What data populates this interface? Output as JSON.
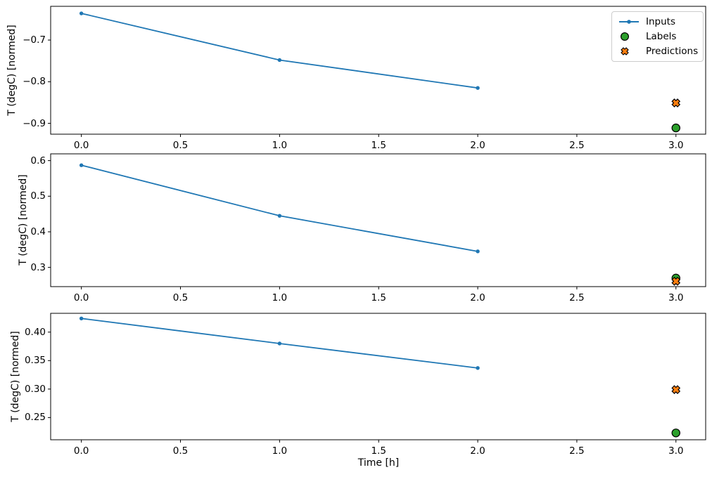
{
  "figure": {
    "background": "#ffffff"
  },
  "xlabel": "Time [h]",
  "legend": {
    "position": "upper right of first subplot",
    "items": [
      {
        "label": "Inputs",
        "marker": "line-dot",
        "color": "#1f77b4",
        "edge_color": "#1f77b4"
      },
      {
        "label": "Labels",
        "marker": "circle",
        "color": "#2ca02c",
        "edge_color": "#000000"
      },
      {
        "label": "Predictions",
        "marker": "X",
        "color": "#ff7f0e",
        "edge_color": "#000000"
      }
    ]
  },
  "chart_data": [
    {
      "type": "line",
      "title": "",
      "ylabel": "T (degC) [normed]",
      "xlabel": "",
      "xlim": [
        -0.155,
        3.15
      ],
      "ylim": [
        -0.926,
        -0.619
      ],
      "grid": false,
      "xticks": {
        "values": [
          0,
          0.5,
          1,
          1.5,
          2,
          2.5,
          3
        ],
        "labels": [
          "0.0",
          "0.5",
          "1.0",
          "1.5",
          "2.0",
          "2.5",
          "3.0"
        ]
      },
      "yticks": {
        "values": [
          -0.7,
          -0.8,
          -0.9
        ],
        "labels": [
          "−0.7",
          "−0.8",
          "−0.9"
        ]
      },
      "series": [
        {
          "name": "Inputs",
          "type": "line",
          "marker": "point",
          "color": "#1f77b4",
          "edge_color": "#1f77b4",
          "x": [
            0,
            1,
            2
          ],
          "y": [
            -0.636,
            -0.748,
            -0.815
          ]
        },
        {
          "name": "Labels",
          "type": "scatter",
          "marker": "circle",
          "color": "#2ca02c",
          "edge_color": "#000000",
          "x": [
            3
          ],
          "y": [
            -0.911
          ]
        },
        {
          "name": "Predictions",
          "type": "scatter",
          "marker": "X",
          "color": "#ff7f0e",
          "edge_color": "#000000",
          "x": [
            3
          ],
          "y": [
            -0.851
          ]
        }
      ]
    },
    {
      "type": "line",
      "title": "",
      "ylabel": "T (degC) [normed]",
      "xlabel": "",
      "xlim": [
        -0.155,
        3.15
      ],
      "ylim": [
        0.246,
        0.619
      ],
      "grid": false,
      "xticks": {
        "values": [
          0,
          0.5,
          1,
          1.5,
          2,
          2.5,
          3
        ],
        "labels": [
          "0.0",
          "0.5",
          "1.0",
          "1.5",
          "2.0",
          "2.5",
          "3.0"
        ]
      },
      "yticks": {
        "values": [
          0.6,
          0.5,
          0.4,
          0.3
        ],
        "labels": [
          "0.6",
          "0.5",
          "0.4",
          "0.3"
        ]
      },
      "series": [
        {
          "name": "Inputs",
          "type": "line",
          "marker": "point",
          "color": "#1f77b4",
          "edge_color": "#1f77b4",
          "x": [
            0,
            1,
            2
          ],
          "y": [
            0.587,
            0.445,
            0.345
          ]
        },
        {
          "name": "Labels",
          "type": "scatter",
          "marker": "circle",
          "color": "#2ca02c",
          "edge_color": "#000000",
          "x": [
            3
          ],
          "y": [
            0.27
          ]
        },
        {
          "name": "Predictions",
          "type": "scatter",
          "marker": "X",
          "color": "#ff7f0e",
          "edge_color": "#000000",
          "x": [
            3
          ],
          "y": [
            0.261
          ]
        }
      ]
    },
    {
      "type": "line",
      "title": "",
      "ylabel": "T (degC) [normed]",
      "xlabel": "Time [h]",
      "xlim": [
        -0.155,
        3.15
      ],
      "ylim": [
        0.211,
        0.433
      ],
      "grid": false,
      "xticks": {
        "values": [
          0,
          0.5,
          1,
          1.5,
          2,
          2.5,
          3
        ],
        "labels": [
          "0.0",
          "0.5",
          "1.0",
          "1.5",
          "2.0",
          "2.5",
          "3.0"
        ]
      },
      "yticks": {
        "values": [
          0.4,
          0.35,
          0.3,
          0.25
        ],
        "labels": [
          "0.40",
          "0.35",
          "0.30",
          "0.25"
        ]
      },
      "series": [
        {
          "name": "Inputs",
          "type": "line",
          "marker": "point",
          "color": "#1f77b4",
          "edge_color": "#1f77b4",
          "x": [
            0,
            1,
            2
          ],
          "y": [
            0.424,
            0.38,
            0.337
          ]
        },
        {
          "name": "Labels",
          "type": "scatter",
          "marker": "circle",
          "color": "#2ca02c",
          "edge_color": "#000000",
          "x": [
            3
          ],
          "y": [
            0.223
          ]
        },
        {
          "name": "Predictions",
          "type": "scatter",
          "marker": "X",
          "color": "#ff7f0e",
          "edge_color": "#000000",
          "x": [
            3
          ],
          "y": [
            0.299
          ]
        }
      ]
    }
  ]
}
